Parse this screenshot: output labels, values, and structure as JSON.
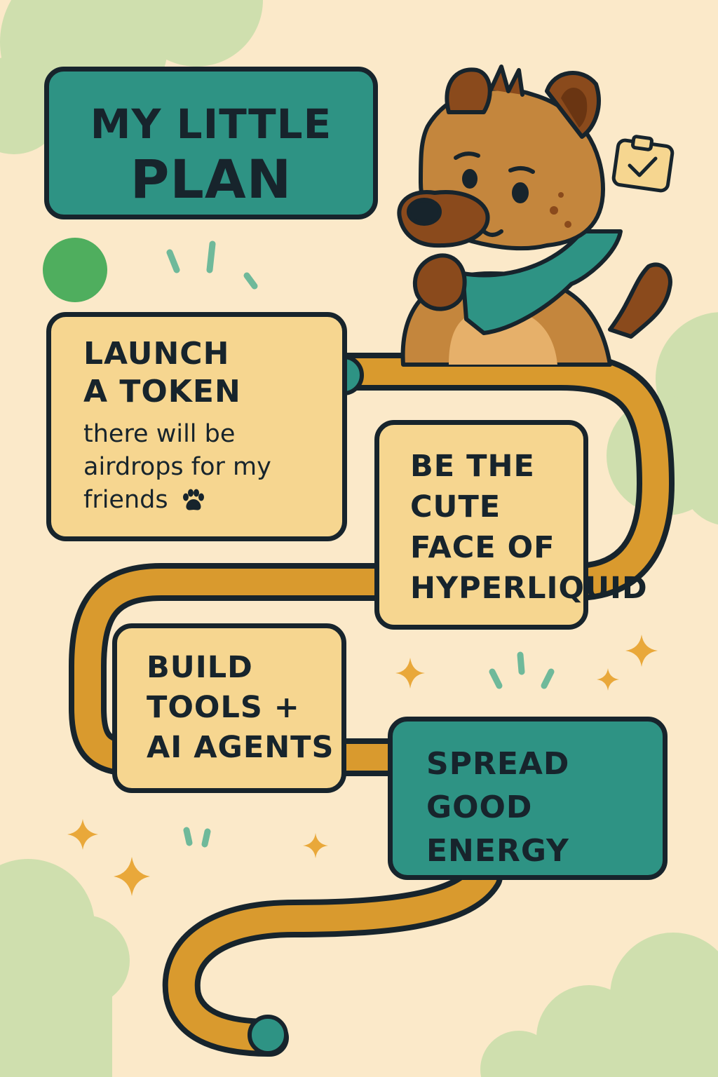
{
  "title": {
    "line1": "MY LITTLE",
    "line2": "PLAN"
  },
  "steps": [
    {
      "title_lines": [
        "LAUNCH",
        "A TOKEN"
      ],
      "subtitle_lines": [
        "there will be",
        "airdrops for my",
        "friends"
      ]
    },
    {
      "title_lines": [
        "BE THE",
        "CUTE",
        "FACE OF",
        "HYPERLIQUID"
      ]
    },
    {
      "title_lines": [
        "BUILD",
        "TOOLS +",
        "AI AGENTS"
      ]
    },
    {
      "title_lines": [
        "SPREAD",
        "GOOD",
        "ENERGY"
      ]
    }
  ],
  "icons": {
    "mascot": "hyena-mascot-with-teal-bandana",
    "badge": "clipboard-check-icon",
    "paw": "paw-print-icon"
  },
  "colors": {
    "background": "#fbe9c9",
    "teal": "#2e9384",
    "sand": "#f6d690",
    "path": "#d99a2e",
    "outline": "#17242c",
    "cloud": "#cfdfae",
    "sparkle": "#e9a83a",
    "dot_green": "#4fae5e"
  }
}
